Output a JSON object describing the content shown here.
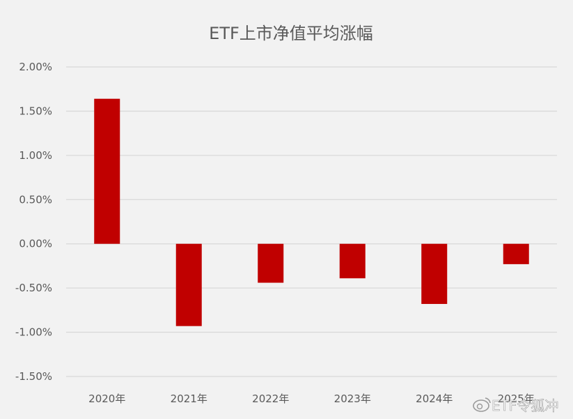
{
  "chart_data": {
    "type": "bar",
    "title": "ETF上市净值平均涨幅",
    "categories": [
      "2020年",
      "2021年",
      "2022年",
      "2023年",
      "2024年",
      "2025年"
    ],
    "values": [
      0.0164,
      -0.0093,
      -0.0044,
      -0.0039,
      -0.0068,
      -0.0023
    ],
    "ylim": [
      -0.015,
      0.02
    ],
    "yticks": [
      0.02,
      0.015,
      0.01,
      0.005,
      0,
      -0.005,
      -0.01,
      -0.015
    ],
    "ytick_labels": [
      "2.00%",
      "1.50%",
      "1.00%",
      "0.50%",
      "0.00%",
      "-0.50%",
      "-1.00%",
      "-1.50%"
    ],
    "grid": true,
    "bar_color": "#c00000",
    "grid_color": "#d9d9d9"
  },
  "watermark": {
    "text": "ETF令狐冲",
    "icon": "weibo-icon"
  }
}
